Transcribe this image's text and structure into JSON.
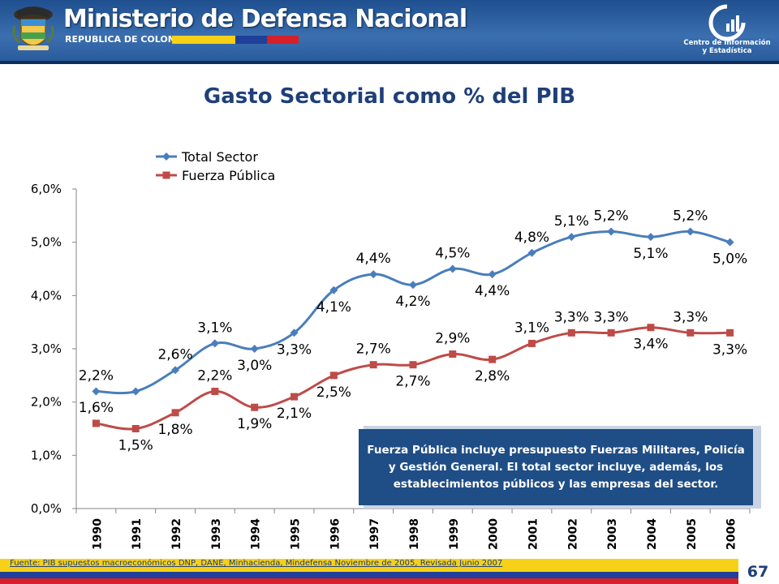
{
  "header": {
    "ministry": "Ministerio de Defensa Nacional",
    "republic": "REPUBLICA DE COLOMBIA",
    "cie_line1": "Centro de Información",
    "cie_line2": "y Estadística",
    "flag_colors": [
      "#f7d117",
      "#1f3f9a",
      "#d5202a"
    ]
  },
  "title": "Gasto Sectorial como % del PIB",
  "chart_data": {
    "type": "line",
    "title": "",
    "xlabel": "",
    "ylabel": "",
    "categories": [
      "1990",
      "1991",
      "1992",
      "1993",
      "1994",
      "1995",
      "1996",
      "1997",
      "1998",
      "1999",
      "2000",
      "2001",
      "2002",
      "2003",
      "2004",
      "2005",
      "2006"
    ],
    "ylim": [
      0,
      6
    ],
    "yticks": [
      0,
      1,
      2,
      3,
      4,
      5,
      6
    ],
    "ytick_labels": [
      "0,0%",
      "1,0%",
      "2,0%",
      "3,0%",
      "4,0%",
      "5,0%",
      "6,0%"
    ],
    "legend_position": "top-left",
    "grid": false,
    "series": [
      {
        "name": "Total Sector",
        "color": "#4a7ebb",
        "marker": "diamond",
        "values": [
          2.2,
          2.2,
          2.6,
          3.1,
          3.0,
          3.3,
          4.1,
          4.4,
          4.2,
          4.5,
          4.4,
          4.8,
          5.1,
          5.2,
          5.1,
          5.2,
          5.0
        ],
        "labels": [
          "2,2%",
          "",
          "2,6%",
          "3,1%",
          "3,0%",
          "3,3%",
          "4,1%",
          "4,4%",
          "4,2%",
          "4,5%",
          "4,4%",
          "4,8%",
          "5,1%",
          "5,2%",
          "5,1%",
          "5,2%",
          "5,0%"
        ]
      },
      {
        "name": "Fuerza Pública",
        "color": "#be4b48",
        "marker": "square",
        "values": [
          1.6,
          1.5,
          1.8,
          2.2,
          1.9,
          2.1,
          2.5,
          2.7,
          2.7,
          2.9,
          2.8,
          3.1,
          3.3,
          3.3,
          3.4,
          3.3,
          3.3
        ],
        "labels": [
          "1,6%",
          "1,5%",
          "1,8%",
          "2,2%",
          "1,9%",
          "2,1%",
          "2,5%",
          "2,7%",
          "2,7%",
          "2,9%",
          "2,8%",
          "3,1%",
          "3,3%",
          "3,3%",
          "3,4%",
          "3,3%",
          "3,3%"
        ]
      }
    ]
  },
  "note": "Fuerza Pública incluye presupuesto Fuerzas Militares, Policía y Gestión General. El total sector incluye, además,  los establecimientos públicos y las empresas del sector.",
  "footer": {
    "source": "Fuente: PIB supuestos macroeconómicos DNP, DANE, Minhacienda, Mindefensa    Noviembre de 2005, Revisada Junio 2007",
    "page": "67"
  }
}
